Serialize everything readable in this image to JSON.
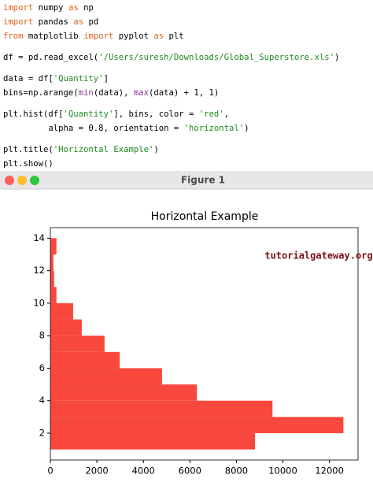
{
  "code": {
    "lines": [
      [
        {
          "text": "import",
          "color": "#e0621d"
        },
        " numpy ",
        {
          "text": "as",
          "color": "#e0621d"
        },
        " np"
      ],
      [
        {
          "text": "import",
          "color": "#e0621d"
        },
        " pandas ",
        {
          "text": "as",
          "color": "#e0621d"
        },
        " pd"
      ],
      [
        {
          "text": "from",
          "color": "#e0621d"
        },
        " matplotlib ",
        {
          "text": "import",
          "color": "#e0621d"
        },
        " pyplot ",
        {
          "text": "as",
          "color": "#e0621d"
        },
        " plt"
      ],
      [],
      [
        "df = pd.read_excel(",
        {
          "text": "'/Users/suresh/Downloads/Global_Superstore.xls'",
          "color": "#1f8a1f"
        },
        ")"
      ],
      [],
      [
        "data = df[",
        {
          "text": "'Quantity'",
          "color": "#1f8a1f"
        },
        "]"
      ],
      [
        "bins=np.arange(",
        {
          "text": "min",
          "color": "#8a3596"
        },
        "(data), ",
        {
          "text": "max",
          "color": "#8a3596"
        },
        "(data) + 1, 1)"
      ],
      [],
      [
        "plt.hist(df[",
        {
          "text": "'Quantity'",
          "color": "#1f8a1f"
        },
        "], bins, color = ",
        {
          "text": "'red'",
          "color": "#1f8a1f"
        },
        ","
      ],
      [
        "         alpha = 0.8, orientation = ",
        {
          "text": "'horizontal'",
          "color": "#1f8a1f"
        },
        ")"
      ],
      [],
      [
        "plt.title(",
        {
          "text": "'Horizontal Example'",
          "color": "#1f8a1f"
        },
        ")"
      ],
      [
        "plt.show()"
      ]
    ]
  },
  "window": {
    "title": "Figure 1"
  },
  "chart_data": {
    "type": "histogram",
    "orientation": "horizontal",
    "title": "Horizontal Example",
    "annotation": "tutorialgateway.org",
    "bins": [
      1,
      2,
      3,
      4,
      5,
      6,
      7,
      8,
      9,
      10,
      11,
      12,
      13,
      14
    ],
    "values": [
      8800,
      12600,
      9550,
      6300,
      4800,
      2980,
      2330,
      1350,
      980,
      260,
      160,
      130,
      260
    ],
    "color": "#f8473d",
    "xlim": [
      0,
      13230
    ],
    "xticks": [
      0,
      2000,
      4000,
      6000,
      8000,
      10000,
      12000
    ],
    "ylim": [
      0.35,
      14.65
    ],
    "yticks": [
      2,
      4,
      6,
      8,
      10,
      12,
      14
    ]
  }
}
